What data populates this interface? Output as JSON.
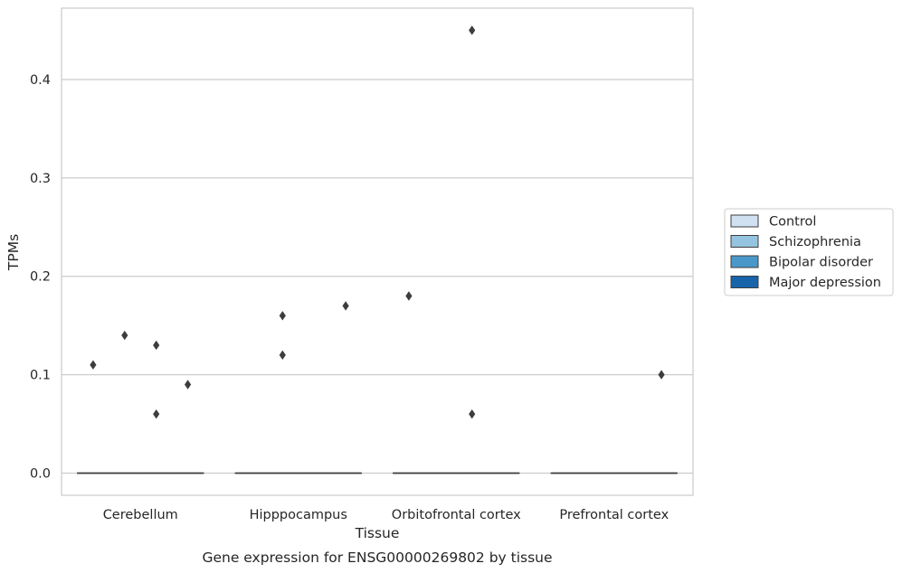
{
  "chart_data": {
    "type": "box",
    "xlabel": "Tissue",
    "ylabel": "TPMs",
    "caption": "Gene expression for ENSG00000269802 by tissue",
    "ylim": [
      -0.0225,
      0.4725
    ],
    "yticks": [
      0.0,
      0.1,
      0.2,
      0.3,
      0.4
    ],
    "ytick_labels": [
      "0.0",
      "0.1",
      "0.2",
      "0.3",
      "0.4"
    ],
    "grid": "horizontal",
    "legend_position": "right",
    "categories": [
      "Cerebellum",
      "Hipppocampus",
      "Orbitofrontal cortex",
      "Prefrontal cortex"
    ],
    "series": [
      {
        "name": "Control",
        "color": "#d0e1f2",
        "boxes": [
          {
            "median": 0,
            "q1": 0,
            "q3": 0,
            "whislo": 0,
            "whishi": 0
          },
          {
            "median": 0,
            "q1": 0,
            "q3": 0,
            "whislo": 0,
            "whishi": 0
          },
          {
            "median": 0,
            "q1": 0,
            "q3": 0,
            "whislo": 0,
            "whishi": 0
          },
          {
            "median": 0,
            "q1": 0,
            "q3": 0,
            "whislo": 0,
            "whishi": 0
          }
        ]
      },
      {
        "name": "Schizophrenia",
        "color": "#94c4df",
        "boxes": [
          {
            "median": 0,
            "q1": 0,
            "q3": 0,
            "whislo": 0,
            "whishi": 0
          },
          {
            "median": 0,
            "q1": 0,
            "q3": 0,
            "whislo": 0,
            "whishi": 0
          },
          {
            "median": 0,
            "q1": 0,
            "q3": 0,
            "whislo": 0,
            "whishi": 0
          },
          {
            "median": 0,
            "q1": 0,
            "q3": 0,
            "whislo": 0,
            "whishi": 0
          }
        ]
      },
      {
        "name": "Bipolar disorder",
        "color": "#4a98c9",
        "boxes": [
          {
            "median": 0,
            "q1": 0,
            "q3": 0,
            "whislo": 0,
            "whishi": 0
          },
          {
            "median": 0,
            "q1": 0,
            "q3": 0,
            "whislo": 0,
            "whishi": 0
          },
          {
            "median": 0,
            "q1": 0,
            "q3": 0,
            "whislo": 0,
            "whishi": 0
          },
          {
            "median": 0,
            "q1": 0,
            "q3": 0,
            "whislo": 0,
            "whishi": 0
          }
        ]
      },
      {
        "name": "Major depression",
        "color": "#1764ab",
        "boxes": [
          {
            "median": 0,
            "q1": 0,
            "q3": 0,
            "whislo": 0,
            "whishi": 0
          },
          {
            "median": 0,
            "q1": 0,
            "q3": 0,
            "whislo": 0,
            "whishi": 0
          },
          {
            "median": 0,
            "q1": 0,
            "q3": 0,
            "whislo": 0,
            "whishi": 0
          },
          {
            "median": 0,
            "q1": 0,
            "q3": 0,
            "whislo": 0,
            "whishi": 0
          }
        ]
      }
    ],
    "outliers": [
      {
        "category": "Cerebellum",
        "series": "Control",
        "value": 0.11
      },
      {
        "category": "Cerebellum",
        "series": "Schizophrenia",
        "value": 0.14
      },
      {
        "category": "Cerebellum",
        "series": "Bipolar disorder",
        "value": 0.13
      },
      {
        "category": "Cerebellum",
        "series": "Bipolar disorder",
        "value": 0.06
      },
      {
        "category": "Cerebellum",
        "series": "Major depression",
        "value": 0.09
      },
      {
        "category": "Hipppocampus",
        "series": "Schizophrenia",
        "value": 0.16
      },
      {
        "category": "Hipppocampus",
        "series": "Schizophrenia",
        "value": 0.12
      },
      {
        "category": "Hipppocampus",
        "series": "Major depression",
        "value": 0.17
      },
      {
        "category": "Orbitofrontal cortex",
        "series": "Control",
        "value": 0.18
      },
      {
        "category": "Orbitofrontal cortex",
        "series": "Bipolar disorder",
        "value": 0.45
      },
      {
        "category": "Orbitofrontal cortex",
        "series": "Bipolar disorder",
        "value": 0.06
      },
      {
        "category": "Prefrontal cortex",
        "series": "Major depression",
        "value": 0.1
      }
    ]
  }
}
